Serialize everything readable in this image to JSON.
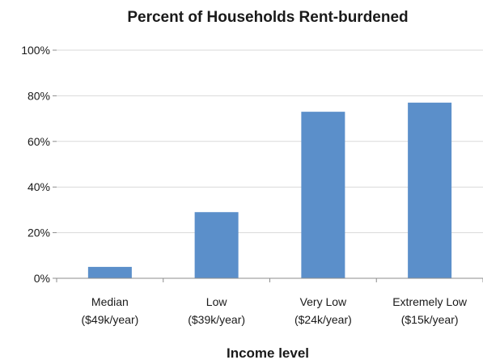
{
  "chart_data": {
    "type": "bar",
    "title": "Percent of Households Rent-burdened",
    "xlabel": "Income level",
    "ylabel": "",
    "categories": [
      [
        "Median",
        "($49k/year)"
      ],
      [
        "Low",
        "($39k/year)"
      ],
      [
        "Very Low",
        "($24k/year)"
      ],
      [
        "Extremely Low",
        "($15k/year)"
      ]
    ],
    "values": [
      5,
      29,
      73,
      77
    ],
    "ylim": [
      0,
      100
    ],
    "yticks": [
      0,
      20,
      40,
      60,
      80,
      100
    ],
    "ytick_labels": [
      "0%",
      "20%",
      "40%",
      "60%",
      "80%",
      "100%"
    ],
    "grid": true,
    "legend": "none",
    "bar_color": "#5b8fca"
  }
}
